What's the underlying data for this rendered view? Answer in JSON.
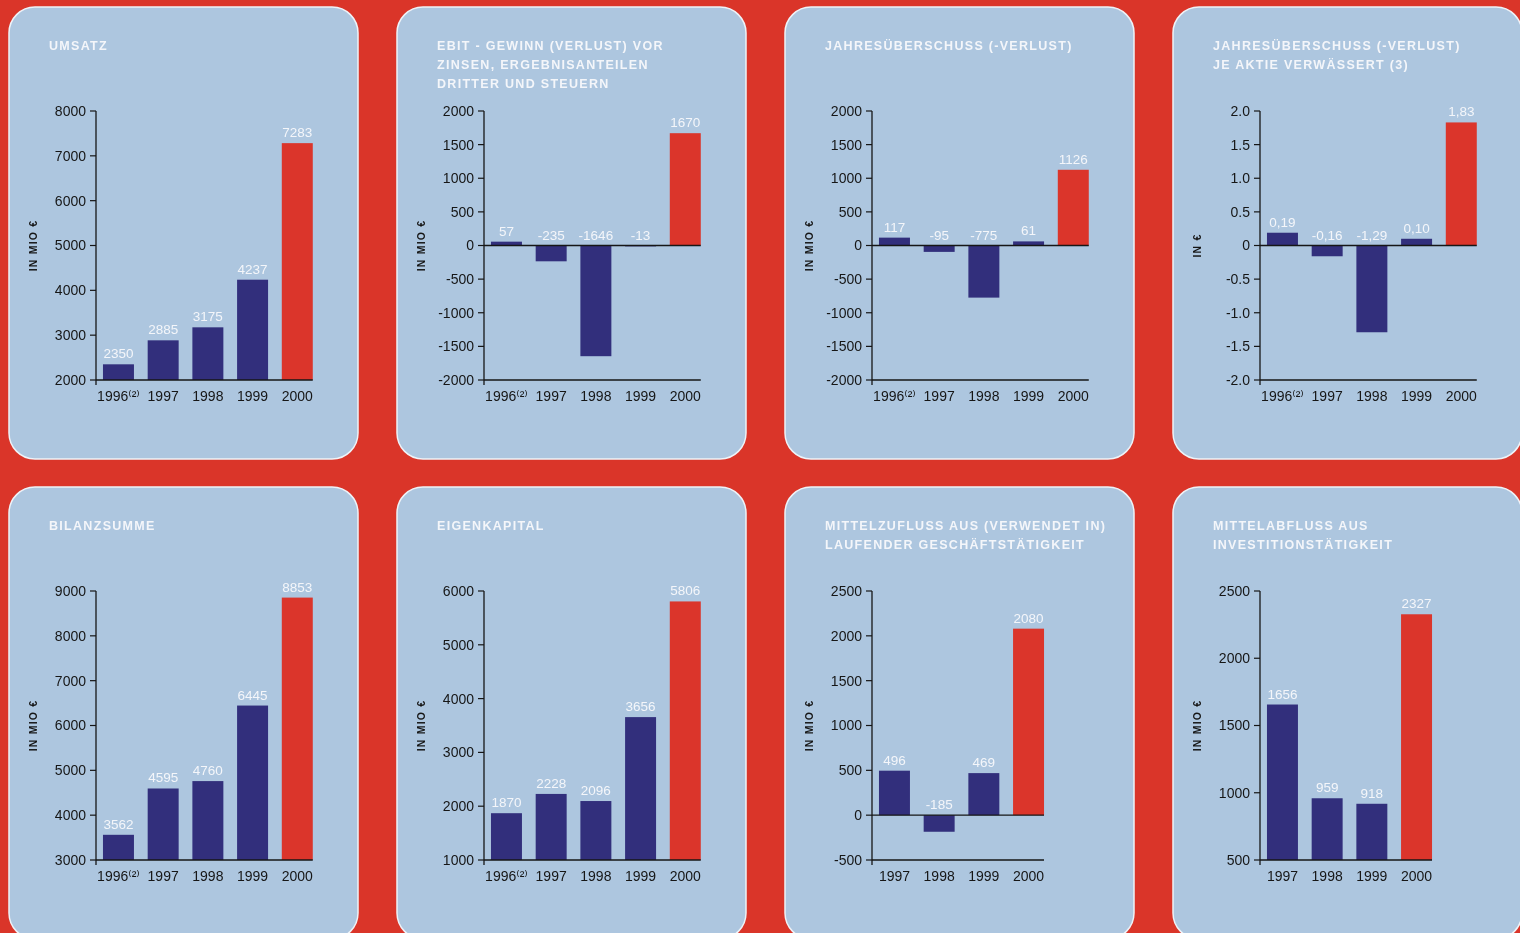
{
  "chart_data": [
    {
      "type": "bar",
      "title": "UMSATZ",
      "ylabel": "IN MIO €",
      "categories": [
        "1996⁽²⁾",
        "1997",
        "1998",
        "1999",
        "2000"
      ],
      "values": [
        2350,
        2885,
        3175,
        4237,
        7283
      ],
      "colors": [
        "#322f7c",
        "#322f7c",
        "#322f7c",
        "#322f7c",
        "#db352b"
      ],
      "ylim": [
        2000,
        8000
      ],
      "yticks": [
        2000,
        3000,
        4000,
        5000,
        6000,
        7000,
        8000
      ],
      "data_labels": true
    },
    {
      "type": "bar",
      "title": "EBIT - GEWINN (VERLUST) VOR\nZINSEN, ERGEBNISANTEILEN\nDRITTER UND STEUERN",
      "ylabel": "IN MIO €",
      "categories": [
        "1996⁽²⁾",
        "1997",
        "1998",
        "1999",
        "2000"
      ],
      "values": [
        57,
        -235,
        -1646,
        -13,
        1670
      ],
      "colors": [
        "#322f7c",
        "#322f7c",
        "#322f7c",
        "#322f7c",
        "#db352b"
      ],
      "ylim": [
        -2000,
        2000
      ],
      "yticks": [
        -2000,
        -1500,
        -1000,
        -500,
        0,
        500,
        1000,
        1500,
        2000
      ],
      "data_labels": true
    },
    {
      "type": "bar",
      "title": "JAHRESÜBERSCHUSS (-VERLUST)",
      "ylabel": "IN MIO €",
      "categories": [
        "1996⁽²⁾",
        "1997",
        "1998",
        "1999",
        "2000"
      ],
      "values": [
        117,
        -95,
        -775,
        61,
        1126
      ],
      "colors": [
        "#322f7c",
        "#322f7c",
        "#322f7c",
        "#322f7c",
        "#db352b"
      ],
      "ylim": [
        -2000,
        2000
      ],
      "yticks": [
        -2000,
        -1500,
        -1000,
        -500,
        0,
        500,
        1000,
        1500,
        2000
      ],
      "data_labels": true
    },
    {
      "type": "bar",
      "title": "JAHRESÜBERSCHUSS (-VERLUST)\nJE AKTIE VERWÄSSERT (3)",
      "ylabel": "IN €",
      "categories": [
        "1996⁽²⁾",
        "1997",
        "1998",
        "1999",
        "2000"
      ],
      "values": [
        0.19,
        -0.16,
        -1.29,
        0.1,
        1.83
      ],
      "value_labels": [
        "0,19",
        "-0,16",
        "-1,29",
        "0,10",
        "1,83"
      ],
      "colors": [
        "#322f7c",
        "#322f7c",
        "#322f7c",
        "#322f7c",
        "#db352b"
      ],
      "ylim": [
        -2,
        2
      ],
      "yticks": [
        {
          "value": -2,
          "label": "-2.0"
        },
        -1.5,
        {
          "value": -1,
          "label": "-1.0"
        },
        -0.5,
        0,
        0.5,
        {
          "value": 1,
          "label": "1.0"
        },
        1.5,
        {
          "value": 2,
          "label": "2.0"
        }
      ]
    },
    {
      "type": "bar",
      "title": "BILANZSUMME",
      "ylabel": "IN MIO €",
      "categories": [
        "1996⁽²⁾",
        "1997",
        "1998",
        "1999",
        "2000"
      ],
      "values": [
        3562,
        4595,
        4760,
        6445,
        8853
      ],
      "colors": [
        "#322f7c",
        "#322f7c",
        "#322f7c",
        "#322f7c",
        "#db352b"
      ],
      "ylim": [
        3000,
        9000
      ],
      "yticks": [
        3000,
        4000,
        5000,
        6000,
        7000,
        8000,
        9000
      ],
      "data_labels": true
    },
    {
      "type": "bar",
      "title": "EIGENKAPITAL",
      "ylabel": "IN MIO €",
      "categories": [
        "1996⁽²⁾",
        "1997",
        "1998",
        "1999",
        "2000"
      ],
      "values": [
        1870,
        2228,
        2096,
        3656,
        5806
      ],
      "colors": [
        "#322f7c",
        "#322f7c",
        "#322f7c",
        "#322f7c",
        "#db352b"
      ],
      "ylim": [
        1000,
        6000
      ],
      "yticks": [
        1000,
        2000,
        3000,
        4000,
        5000,
        6000
      ],
      "data_labels": true
    },
    {
      "type": "bar",
      "title": "MITTELZUFLUSS AUS (VERWENDET IN)\nLAUFENDER GESCHÄFTSTÄTIGKEIT",
      "ylabel": "IN MIO €",
      "categories": [
        "1997",
        "1998",
        "1999",
        "2000"
      ],
      "values": [
        496,
        -185,
        469,
        2080
      ],
      "colors": [
        "#322f7c",
        "#322f7c",
        "#322f7c",
        "#db352b"
      ],
      "ylim": [
        -500,
        2500
      ],
      "yticks": [
        -500,
        0,
        500,
        1000,
        1500,
        2000,
        2500
      ],
      "data_labels": true
    },
    {
      "type": "bar",
      "title": "MITTELABFLUSS AUS\nINVESTITIONSTÄTIGKEIT",
      "ylabel": "IN MIO €",
      "categories": [
        "1997",
        "1998",
        "1999",
        "2000"
      ],
      "values": [
        1656,
        959,
        918,
        2327
      ],
      "colors": [
        "#322f7c",
        "#322f7c",
        "#322f7c",
        "#db352b"
      ],
      "ylim": [
        500,
        2500
      ],
      "yticks": [
        500,
        1000,
        1500,
        2000,
        2500
      ],
      "data_labels": true
    }
  ]
}
